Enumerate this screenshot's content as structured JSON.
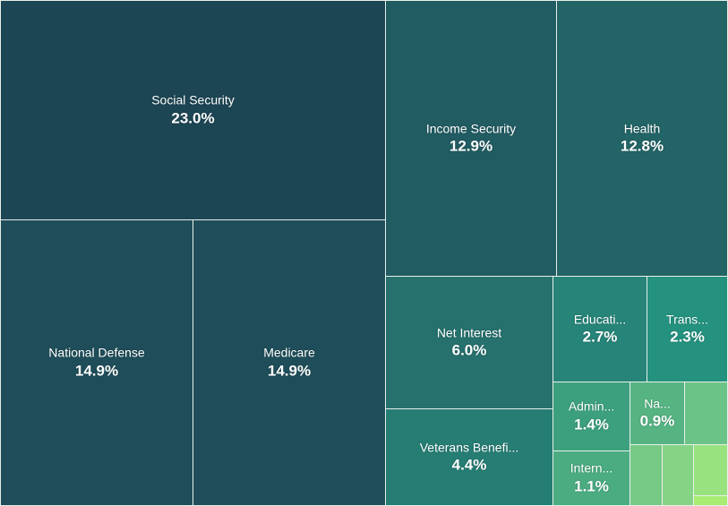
{
  "chart_data": {
    "type": "treemap",
    "title": "",
    "unit": "%",
    "tiles": [
      {
        "id": "social-security",
        "name": "Social Security",
        "label": "Social Security",
        "value": 23.0,
        "display": "23.0%",
        "color": "#1d4654"
      },
      {
        "id": "income-security",
        "name": "Income Security",
        "label": "Income Security",
        "value": 12.9,
        "display": "12.9%",
        "color": "#225c63"
      },
      {
        "id": "health",
        "name": "Health",
        "label": "Health",
        "value": 12.8,
        "display": "12.8%",
        "color": "#236466"
      },
      {
        "id": "national-defense",
        "name": "National Defense",
        "label": "National Defense",
        "value": 14.9,
        "display": "14.9%",
        "color": "#1f4e5a"
      },
      {
        "id": "medicare",
        "name": "Medicare",
        "label": "Medicare",
        "value": 14.9,
        "display": "14.9%",
        "color": "#1f4e5a"
      },
      {
        "id": "net-interest",
        "name": "Net Interest",
        "label": "Net Interest",
        "value": 6.0,
        "display": "6.0%",
        "color": "#26716d"
      },
      {
        "id": "education",
        "name": "Education",
        "label": "Educati...",
        "value": 2.7,
        "display": "2.7%",
        "color": "#268478"
      },
      {
        "id": "transportation",
        "name": "Transportation",
        "label": "Trans...",
        "value": 2.3,
        "display": "2.3%",
        "color": "#24927e"
      },
      {
        "id": "veterans-benefits",
        "name": "Veterans Benefits",
        "label": "Veterans Benefi...",
        "value": 4.4,
        "display": "4.4%",
        "color": "#267d74"
      },
      {
        "id": "administration",
        "name": "Administration",
        "label": "Admin...",
        "value": 1.4,
        "display": "1.4%",
        "color": "#3ca07f"
      },
      {
        "id": "natural-resources",
        "name": "Natural Resources",
        "label": "Na...",
        "value": 0.9,
        "display": "0.9%",
        "color": "#56b483"
      },
      {
        "id": "small-1",
        "name": "",
        "label": "",
        "value": null,
        "display": "",
        "color": "#6cc387"
      },
      {
        "id": "international",
        "name": "International",
        "label": "Intern...",
        "value": 1.1,
        "display": "1.1%",
        "color": "#4bac82"
      },
      {
        "id": "small-2",
        "name": "",
        "label": "",
        "value": null,
        "display": "",
        "color": "#77c986"
      },
      {
        "id": "small-3",
        "name": "",
        "label": "",
        "value": null,
        "display": "",
        "color": "#86d386"
      },
      {
        "id": "small-4",
        "name": "",
        "label": "",
        "value": null,
        "display": "",
        "color": "#98e27f"
      },
      {
        "id": "small-5",
        "name": "",
        "label": "",
        "value": null,
        "display": "",
        "color": "#a8ec74"
      }
    ]
  }
}
